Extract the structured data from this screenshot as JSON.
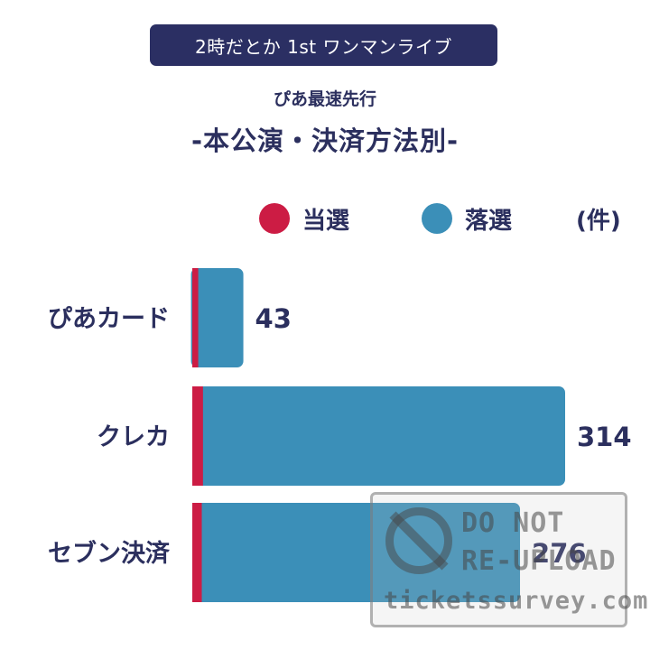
{
  "header": {
    "badge": "2時だとか 1st ワンマンライブ",
    "subtitle": "ぴあ最速先行",
    "title": "-本公演・決済方法別-"
  },
  "legend": {
    "won_label": "当選",
    "lost_label": "落選",
    "unit": "(件)"
  },
  "colors": {
    "won": "#cc1c44",
    "lost": "#3b8fb8",
    "text": "#2b2f5e"
  },
  "chart_data": {
    "type": "bar",
    "orientation": "horizontal",
    "stacked": true,
    "categories": [
      "ぴあカード",
      "クレカ",
      "セブン決済"
    ],
    "series": [
      {
        "name": "当選",
        "values": [
          5,
          9,
          8
        ]
      },
      {
        "name": "落選",
        "values": [
          38,
          305,
          268
        ]
      }
    ],
    "totals": [
      43,
      314,
      276
    ],
    "total_labels": [
      "43",
      "314",
      "276"
    ],
    "xlim": [
      0,
      314
    ],
    "grid": false,
    "legend_position": "top-right"
  },
  "watermark": {
    "line1": "DO NOT",
    "line2": "RE-UPLOAD",
    "site": "ticketssurvey.com",
    "icon": "prohibited-icon"
  }
}
